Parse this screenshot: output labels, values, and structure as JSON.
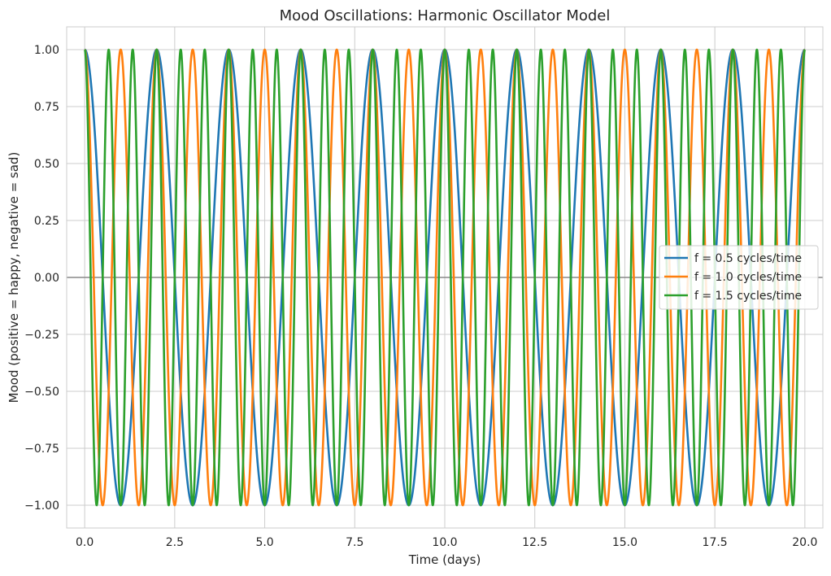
{
  "chart_data": {
    "type": "line",
    "title": "Mood Oscillations: Harmonic Oscillator Model",
    "xlabel": "Time (days)",
    "ylabel": "Mood (positive = happy, negative = sad)",
    "xlim": [
      -0.5,
      20.5
    ],
    "ylim": [
      -1.1,
      1.1
    ],
    "x_ticks": [
      0.0,
      2.5,
      5.0,
      7.5,
      10.0,
      12.5,
      15.0,
      17.5,
      20.0
    ],
    "x_tick_labels": [
      "0.0",
      "2.5",
      "5.0",
      "7.5",
      "10.0",
      "12.5",
      "15.0",
      "17.5",
      "20.0"
    ],
    "y_ticks": [
      1.0,
      0.75,
      0.5,
      0.25,
      0.0,
      -0.25,
      -0.5,
      -0.75,
      -1.0
    ],
    "y_tick_labels": [
      "1.00",
      "0.75",
      "0.50",
      "0.25",
      "0.00",
      "−0.25",
      "−0.50",
      "−0.75",
      "−1.00"
    ],
    "grid": true,
    "zero_line": true,
    "legend_position": "center-right",
    "x_range": [
      0,
      20
    ],
    "series": [
      {
        "name": "f = 0.5 cycles/time",
        "function": "cos",
        "amplitude": 1.0,
        "period": 2.0,
        "color": "#1f77b4"
      },
      {
        "name": "f = 1.0 cycles/time",
        "function": "cos",
        "amplitude": 1.0,
        "period": 1.0,
        "color": "#ff7f0e"
      },
      {
        "name": "f = 1.5 cycles/time",
        "function": "cos",
        "amplitude": 1.0,
        "period": 0.6667,
        "color": "#2ca02c"
      }
    ]
  }
}
